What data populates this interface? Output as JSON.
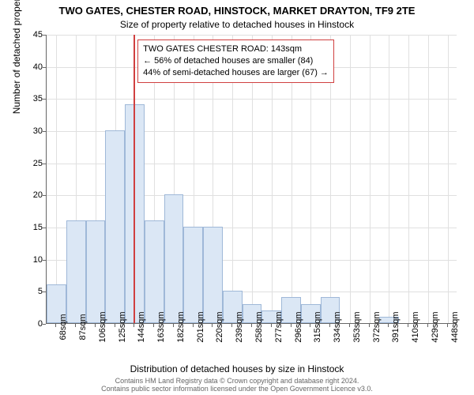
{
  "title_main": "TWO GATES, CHESTER ROAD, HINSTOCK, MARKET DRAYTON, TF9 2TE",
  "title_sub": "Size of property relative to detached houses in Hinstock",
  "y_axis_label": "Number of detached properties",
  "x_axis_label": "Distribution of detached houses by size in Hinstock",
  "chart": {
    "type": "histogram",
    "ylim": [
      0,
      45
    ],
    "ytick_step": 5,
    "yticks": [
      0,
      5,
      10,
      15,
      20,
      25,
      30,
      35,
      40,
      45
    ],
    "xticks": [
      68,
      87,
      106,
      125,
      144,
      163,
      182,
      201,
      220,
      239,
      258,
      277,
      296,
      315,
      334,
      353,
      372,
      391,
      410,
      429,
      448
    ],
    "xtick_unit": "sqm",
    "xlim": [
      58.5,
      457.5
    ],
    "values": [
      6,
      16,
      16,
      30,
      34,
      16,
      20,
      15,
      15,
      5,
      3,
      2,
      4,
      3,
      4,
      0,
      0,
      1,
      0,
      0,
      0
    ],
    "bar_color": "#dbe7f5",
    "bar_border": "#9fb8d8",
    "grid_color": "#e0e0e0",
    "axis_color": "#666666",
    "background_color": "#ffffff",
    "marker_value": 143,
    "marker_color": "#d04040"
  },
  "info_box": {
    "border_color": "#d04040",
    "line1": "TWO GATES CHESTER ROAD: 143sqm",
    "line2": "← 56% of detached houses are smaller (84)",
    "line3": "44% of semi-detached houses are larger (67) →"
  },
  "footer_line1": "Contains HM Land Registry data © Crown copyright and database right 2024.",
  "footer_line2": "Contains public sector information licensed under the Open Government Licence v3.0."
}
